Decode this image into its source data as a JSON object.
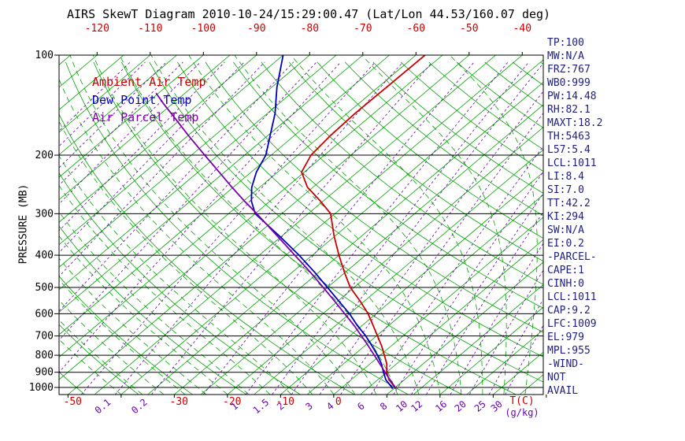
{
  "legend": {
    "ambient": "Ambient Air Temp",
    "dewpoint": "Dew Point Temp",
    "parcel": "Air Parcel Temp"
  },
  "panel": {
    "items": [
      "TP:100",
      "MW:N/A",
      "FRZ:767",
      "WB0:999",
      "PW:14.48",
      "RH:82.1",
      "MAXT:18.2",
      "TH:5463",
      "L57:5.4",
      "LCL:1011",
      "LI:8.4",
      "SI:7.0",
      "TT:42.2",
      "KI:294",
      "SW:N/A",
      "EI:0.2",
      "-PARCEL-",
      "CAPE:1",
      "CINH:0",
      "LCL:1011",
      "CAP:9.2",
      "LFC:1009",
      "EL:979",
      "MPL:955",
      "-WIND-",
      "NOT",
      "AVAIL"
    ]
  },
  "chart_data": {
    "type": "line",
    "title": "AIRS SkewT Diagram 2010-10-24/15:29:00.47 (Lat/Lon 44.53/160.07 deg)",
    "ylabel": "PRESSURE (MB)",
    "xlabel": "T(C)",
    "x2label": "(g/kg)",
    "y_scale": "log-pressure",
    "ylim": [
      1050,
      100
    ],
    "pressure_ticks": [
      100,
      200,
      300,
      400,
      500,
      600,
      700,
      800,
      900,
      1000
    ],
    "top_temp_ticks": [
      -120,
      -110,
      -100,
      -90,
      -80,
      -70,
      -60,
      -50,
      -40
    ],
    "bottom_temp_ticks": [
      -50,
      -30,
      -20,
      -10,
      0
    ],
    "mixing_ratio_labels": [
      0.1,
      0.2,
      1,
      1.5,
      2,
      3,
      4,
      6,
      8,
      10,
      12,
      16,
      20,
      25,
      30
    ],
    "grid": {
      "isotherms": {
        "min": -125,
        "max": 40,
        "step": 5
      },
      "dry_adiabats_theta_c": {
        "min": -60,
        "max": 190,
        "step": 10
      },
      "moist_adiabats_t0_c": {
        "min": -40,
        "max": 44,
        "step": 4
      },
      "mixing_ratio_lines_gkg": [
        1e-05,
        2e-05,
        5e-05,
        0.0001,
        0.0002,
        0.0005,
        0.001,
        0.002,
        0.005,
        0.01,
        0.02,
        0.05,
        0.1,
        0.2,
        0.5,
        1,
        1.5,
        2,
        3,
        4,
        6,
        8,
        10,
        12,
        16,
        20,
        25,
        30
      ]
    },
    "colors": {
      "isotherm": "#00a400",
      "mixing": "#6a00b4",
      "isobar": "#000000",
      "top_axis": "#cc0000",
      "panel_text": "#202080"
    },
    "series": [
      {
        "name": "Ambient Air Temp",
        "color": "#cc0000",
        "style": "solid",
        "points": [
          [
            1010,
            10.4
          ],
          [
            1000,
            10
          ],
          [
            950,
            7.2
          ],
          [
            900,
            5
          ],
          [
            850,
            3.2
          ],
          [
            800,
            0.8
          ],
          [
            750,
            -1.8
          ],
          [
            700,
            -4.8
          ],
          [
            650,
            -8
          ],
          [
            600,
            -11.5
          ],
          [
            550,
            -15.8
          ],
          [
            500,
            -20.7
          ],
          [
            450,
            -25.2
          ],
          [
            400,
            -30
          ],
          [
            350,
            -35.2
          ],
          [
            300,
            -40.8
          ],
          [
            275,
            -45.5
          ],
          [
            250,
            -51
          ],
          [
            225,
            -55.5
          ],
          [
            200,
            -57.5
          ],
          [
            175,
            -58.2
          ],
          [
            150,
            -58.5
          ],
          [
            125,
            -58.4
          ],
          [
            100,
            -58.3
          ]
        ]
      },
      {
        "name": "Dew Point Temp",
        "color": "#0000bb",
        "style": "solid",
        "points": [
          [
            1010,
            9.8
          ],
          [
            1000,
            9.4
          ],
          [
            950,
            6.6
          ],
          [
            900,
            4.4
          ],
          [
            850,
            2.2
          ],
          [
            800,
            -0.5
          ],
          [
            750,
            -3.6
          ],
          [
            700,
            -7
          ],
          [
            650,
            -11
          ],
          [
            600,
            -15
          ],
          [
            550,
            -19.8
          ],
          [
            500,
            -25
          ],
          [
            450,
            -30.8
          ],
          [
            400,
            -37.5
          ],
          [
            350,
            -45.5
          ],
          [
            300,
            -55
          ],
          [
            275,
            -58.5
          ],
          [
            250,
            -61.5
          ],
          [
            225,
            -64
          ],
          [
            200,
            -66
          ],
          [
            175,
            -69.5
          ],
          [
            150,
            -73.5
          ],
          [
            125,
            -79
          ],
          [
            100,
            -85
          ]
        ]
      },
      {
        "name": "Air Parcel Temp",
        "color": "#7d00ab",
        "style": "solid",
        "points": [
          [
            1010,
            10.4
          ],
          [
            1000,
            10
          ],
          [
            950,
            7.4
          ],
          [
            900,
            4.7
          ],
          [
            850,
            1.9
          ],
          [
            800,
            -1.1
          ],
          [
            750,
            -4.3
          ],
          [
            700,
            -7.8
          ],
          [
            650,
            -11.6
          ],
          [
            600,
            -15.9
          ],
          [
            550,
            -20.6
          ],
          [
            500,
            -25.8
          ],
          [
            450,
            -31.6
          ],
          [
            400,
            -38.3
          ],
          [
            350,
            -45.9
          ],
          [
            300,
            -54.7
          ],
          [
            275,
            -59.8
          ],
          [
            250,
            -65.2
          ],
          [
            225,
            -71
          ],
          [
            200,
            -77.5
          ],
          [
            175,
            -84.8
          ],
          [
            150,
            -93
          ],
          [
            140,
            -96.7
          ],
          [
            130,
            -100.5
          ]
        ]
      }
    ]
  }
}
